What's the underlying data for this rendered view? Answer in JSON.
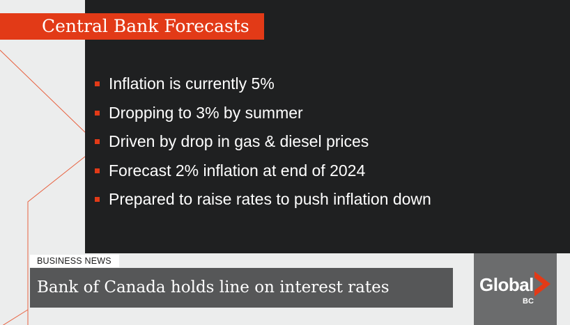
{
  "slide": {
    "title": "Central Bank Forecasts",
    "bullets": [
      "Inflation is currently 5%",
      "Dropping to 3% by summer",
      "Driven by drop in gas & diesel prices",
      "Forecast 2% inflation at end of 2024",
      "Prepared to raise rates to push inflation down"
    ]
  },
  "lower_third": {
    "category": "BUSINESS NEWS",
    "headline": "Bank of Canada holds line on interest rates"
  },
  "logo": {
    "wordmark": "Global",
    "region": "BC"
  },
  "colors": {
    "accent": "#e23a17",
    "panel": "#1f2021",
    "headline_bar": "#565758",
    "logo_box": "#6b6c6d",
    "background": "#eceded"
  }
}
